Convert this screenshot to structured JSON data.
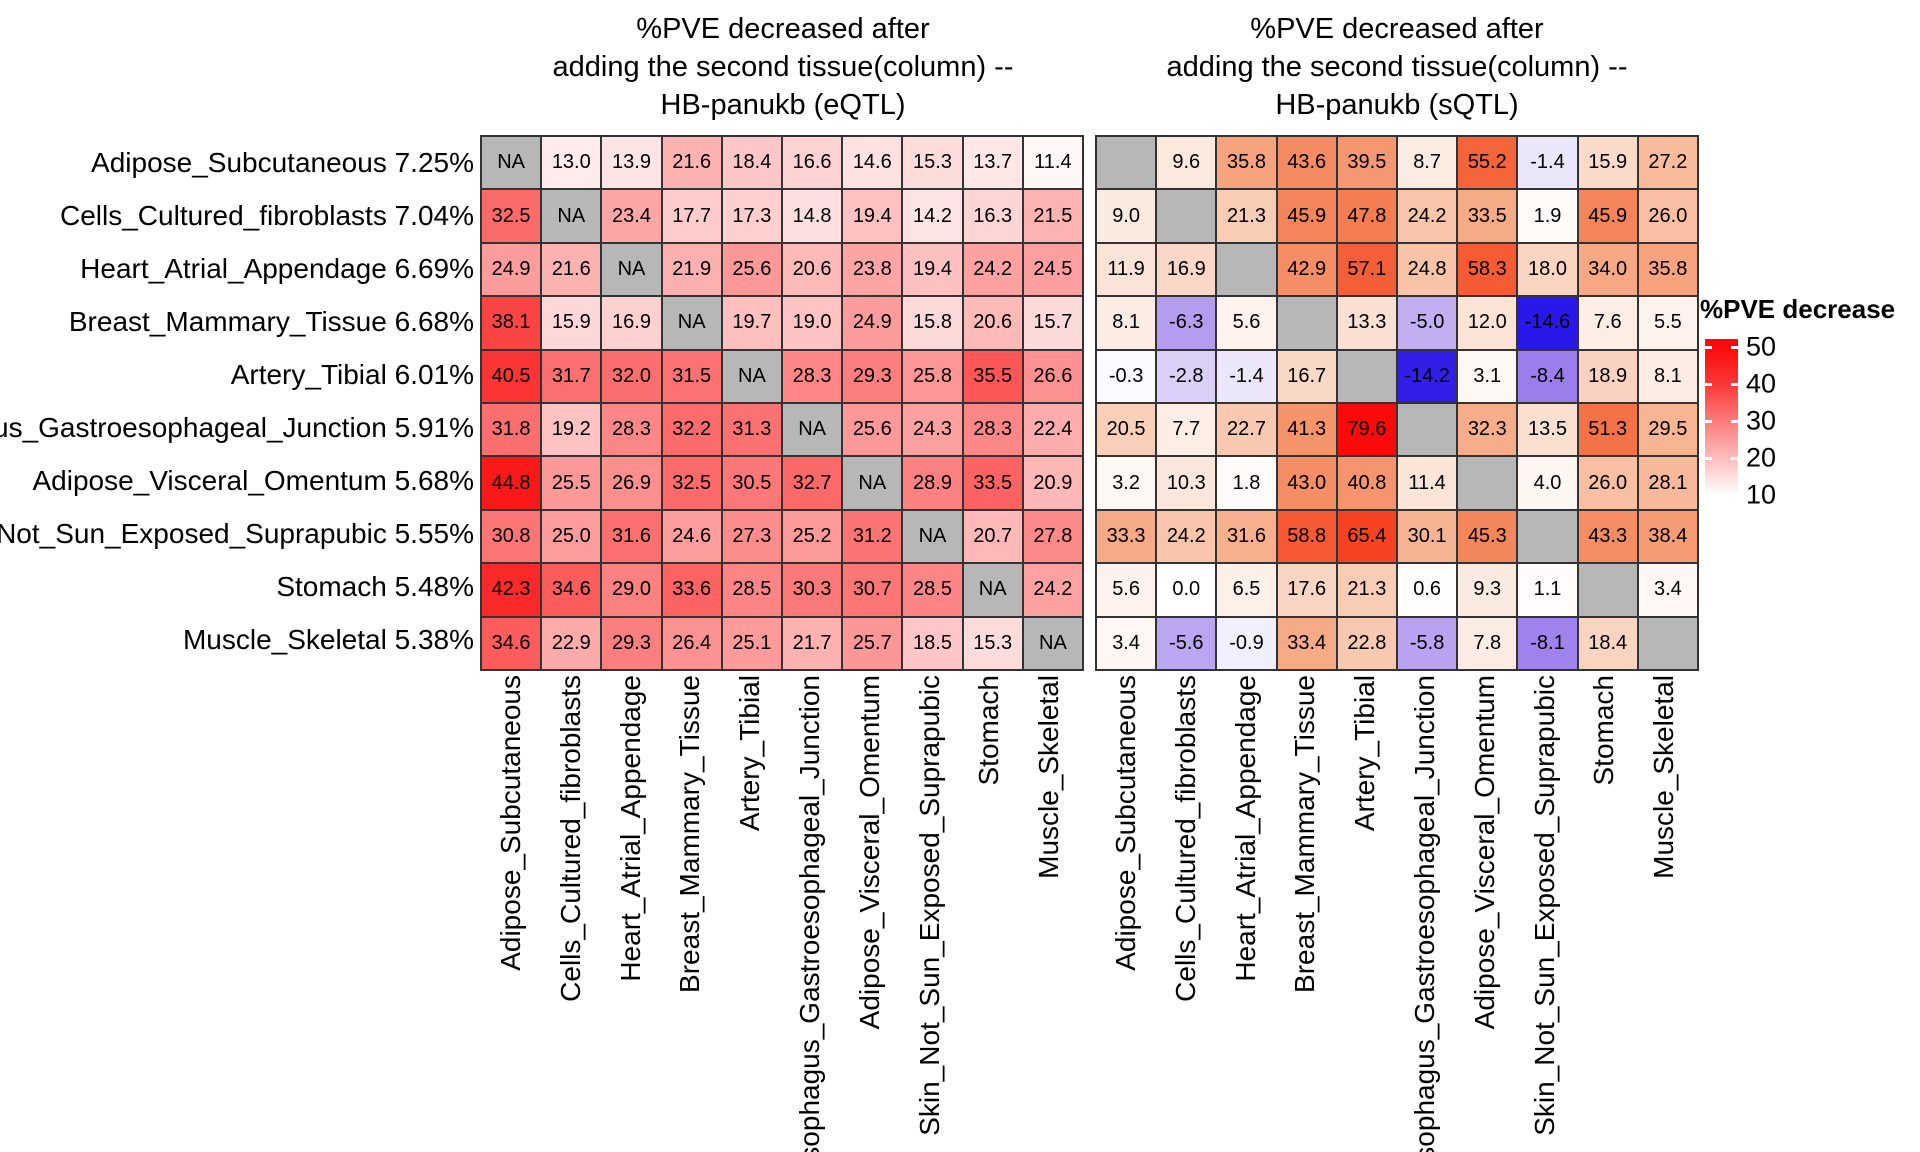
{
  "chart_data": {
    "type": "heatmap",
    "panels": [
      {
        "title": "%PVE decreased after\nadding the second tissue(column) --\nHB-panukb (eQTL)",
        "na_label": "NA",
        "scheme": "eqtl",
        "values": [
          [
            null,
            13.0,
            13.9,
            21.6,
            18.4,
            16.6,
            14.6,
            15.3,
            13.7,
            11.4
          ],
          [
            32.5,
            null,
            23.4,
            17.7,
            17.3,
            14.8,
            19.4,
            14.2,
            16.3,
            21.5
          ],
          [
            24.9,
            21.6,
            null,
            21.9,
            25.6,
            20.6,
            23.8,
            19.4,
            24.2,
            24.5
          ],
          [
            38.1,
            15.9,
            16.9,
            null,
            19.7,
            19.0,
            24.9,
            15.8,
            20.6,
            15.7
          ],
          [
            40.5,
            31.7,
            32.0,
            31.5,
            null,
            28.3,
            29.3,
            25.8,
            35.5,
            26.6
          ],
          [
            31.8,
            19.2,
            28.3,
            32.2,
            31.3,
            null,
            25.6,
            24.3,
            28.3,
            22.4
          ],
          [
            44.8,
            25.5,
            26.9,
            32.5,
            30.5,
            32.7,
            null,
            28.9,
            33.5,
            20.9
          ],
          [
            30.8,
            25.0,
            31.6,
            24.6,
            27.3,
            25.2,
            31.2,
            null,
            20.7,
            27.8
          ],
          [
            42.3,
            34.6,
            29.0,
            33.6,
            28.5,
            30.3,
            30.7,
            28.5,
            null,
            24.2
          ],
          [
            34.6,
            22.9,
            29.3,
            26.4,
            25.1,
            21.7,
            25.7,
            18.5,
            15.3,
            null
          ]
        ]
      },
      {
        "title": "%PVE decreased after\nadding the second tissue(column) --\nHB-panukb (sQTL)",
        "na_label": "",
        "scheme": "sqtl",
        "values": [
          [
            null,
            9.6,
            35.8,
            43.6,
            39.5,
            8.7,
            55.2,
            -1.4,
            15.9,
            27.2
          ],
          [
            9.0,
            null,
            21.3,
            45.9,
            47.8,
            24.2,
            33.5,
            1.9,
            45.9,
            26.0
          ],
          [
            11.9,
            16.9,
            null,
            42.9,
            57.1,
            24.8,
            58.3,
            18.0,
            34.0,
            35.8
          ],
          [
            8.1,
            -6.3,
            5.6,
            null,
            13.3,
            -5.0,
            12.0,
            -14.6,
            7.6,
            5.5
          ],
          [
            -0.3,
            -2.8,
            -1.4,
            16.7,
            null,
            -14.2,
            3.1,
            -8.4,
            18.9,
            8.1
          ],
          [
            20.5,
            7.7,
            22.7,
            41.3,
            79.6,
            null,
            32.3,
            13.5,
            51.3,
            29.5
          ],
          [
            3.2,
            10.3,
            1.8,
            43.0,
            40.8,
            11.4,
            null,
            4.0,
            26.0,
            28.1
          ],
          [
            33.3,
            24.2,
            31.6,
            58.8,
            65.4,
            30.1,
            45.3,
            null,
            43.3,
            38.4
          ],
          [
            5.6,
            0.0,
            6.5,
            17.6,
            21.3,
            0.6,
            9.3,
            1.1,
            null,
            3.4
          ],
          [
            3.4,
            -5.6,
            -0.9,
            33.4,
            22.8,
            -5.8,
            7.8,
            -8.1,
            18.4,
            null
          ]
        ]
      }
    ],
    "rows": [
      {
        "label": "Adipose_Subcutaneous",
        "pct": "7.25%"
      },
      {
        "label": "Cells_Cultured_fibroblasts",
        "pct": "7.04%"
      },
      {
        "label": "Heart_Atrial_Appendage",
        "pct": "6.69%"
      },
      {
        "label": "Breast_Mammary_Tissue",
        "pct": "6.68%"
      },
      {
        "label": "Artery_Tibial",
        "pct": "6.01%"
      },
      {
        "label": "Esophagus_Gastroesophageal_Junction",
        "pct": "5.91%"
      },
      {
        "label": "Adipose_Visceral_Omentum",
        "pct": "5.68%"
      },
      {
        "label": "Skin_Not_Sun_Exposed_Suprapubic",
        "pct": "5.55%"
      },
      {
        "label": "Stomach",
        "pct": "5.48%"
      },
      {
        "label": "Muscle_Skeletal",
        "pct": "5.38%"
      }
    ],
    "columns": [
      "Adipose_Subcutaneous",
      "Cells_Cultured_fibroblasts",
      "Heart_Atrial_Appendage",
      "Breast_Mammary_Tissue",
      "Artery_Tibial",
      "Esophagus_Gastroesophageal_Junction",
      "Adipose_Visceral_Omentum",
      "Skin_Not_Sun_Exposed_Suprapubic",
      "Stomach",
      "Muscle_Skeletal"
    ],
    "legend": {
      "title": "%PVE decrease",
      "ticks": [
        50,
        40,
        30,
        20,
        10
      ]
    },
    "colors": {
      "na_gray": "#b7b7b7",
      "grid_line": "#333333",
      "pos_max_red": "#fa0a0a",
      "neg_min_blue": "#1e12ee",
      "background": "#ffffff"
    },
    "layout": {
      "grid_on": false,
      "legend_position": "right",
      "value_format": "one_decimal"
    }
  }
}
